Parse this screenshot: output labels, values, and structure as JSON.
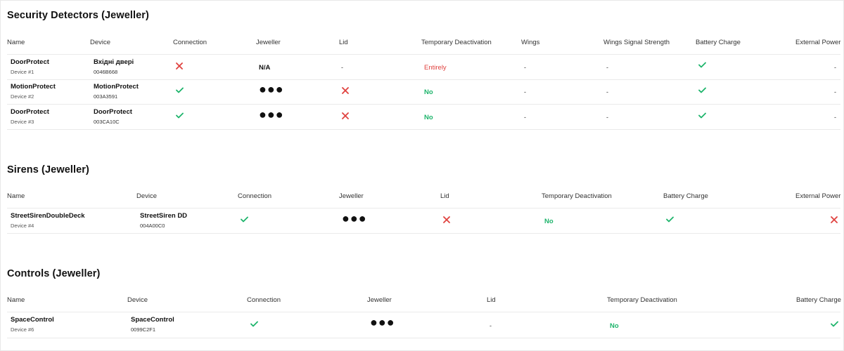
{
  "colors": {
    "green": "#1db46b",
    "red": "#e0423f"
  },
  "sections": {
    "detectors": {
      "title": "Security Detectors (Jeweller)",
      "headers": {
        "name": "Name",
        "device": "Device",
        "connection": "Connection",
        "jeweller": "Jeweller",
        "lid": "Lid",
        "deactivation": "Temporary Deactivation",
        "wings": "Wings",
        "wings_signal": "Wings Signal Strength",
        "battery": "Battery Charge",
        "power": "External Power"
      },
      "rows": [
        {
          "name": "DoorProtect",
          "sub": "Device #1",
          "device": "Вхідні двері",
          "id": "0046B668",
          "connection_icon": "cross-icon",
          "jeweller": "N/A",
          "lid": "-",
          "deactivation": "Entirely",
          "wings": "-",
          "wings_signal": "-",
          "battery_icon": "check-icon",
          "power": "-"
        },
        {
          "name": "MotionProtect",
          "sub": "Device #2",
          "device": "MotionProtect",
          "id": "003A3591",
          "connection_icon": "check-icon",
          "jeweller": "●●●",
          "lid_icon": "cross-icon",
          "deactivation": "No",
          "wings": "-",
          "wings_signal": "-",
          "battery_icon": "check-icon",
          "power": "-"
        },
        {
          "name": "DoorProtect",
          "sub": "Device #3",
          "device": "DoorProtect",
          "id": "003CA10C",
          "connection_icon": "check-icon",
          "jeweller": "●●●",
          "lid_icon": "cross-icon",
          "deactivation": "No",
          "wings": "-",
          "wings_signal": "-",
          "battery_icon": "check-icon",
          "power": "-"
        }
      ]
    },
    "sirens": {
      "title": "Sirens (Jeweller)",
      "headers": {
        "name": "Name",
        "device": "Device",
        "connection": "Connection",
        "jeweller": "Jeweller",
        "lid": "Lid",
        "deactivation": "Temporary Deactivation",
        "battery": "Battery Charge",
        "power": "External Power"
      },
      "rows": [
        {
          "name": "StreetSirenDoubleDeck",
          "sub": "Device #4",
          "device": "StreetSiren DD",
          "id": "004A00C0",
          "connection_icon": "check-icon",
          "jeweller": "●●●",
          "lid_icon": "cross-icon",
          "deactivation": "No",
          "battery_icon": "check-icon",
          "power_icon": "cross-icon"
        }
      ]
    },
    "controls": {
      "title": "Controls (Jeweller)",
      "headers": {
        "name": "Name",
        "device": "Device",
        "connection": "Connection",
        "jeweller": "Jeweller",
        "lid": "Lid",
        "deactivation": "Temporary Deactivation",
        "battery": "Battery Charge"
      },
      "rows": [
        {
          "name": "SpaceControl",
          "sub": "Device #6",
          "device": "SpaceControl",
          "id": "0099C2F1",
          "connection_icon": "check-icon",
          "jeweller": "●●●",
          "lid": "-",
          "deactivation": "No",
          "battery_icon": "check-icon"
        }
      ]
    }
  }
}
